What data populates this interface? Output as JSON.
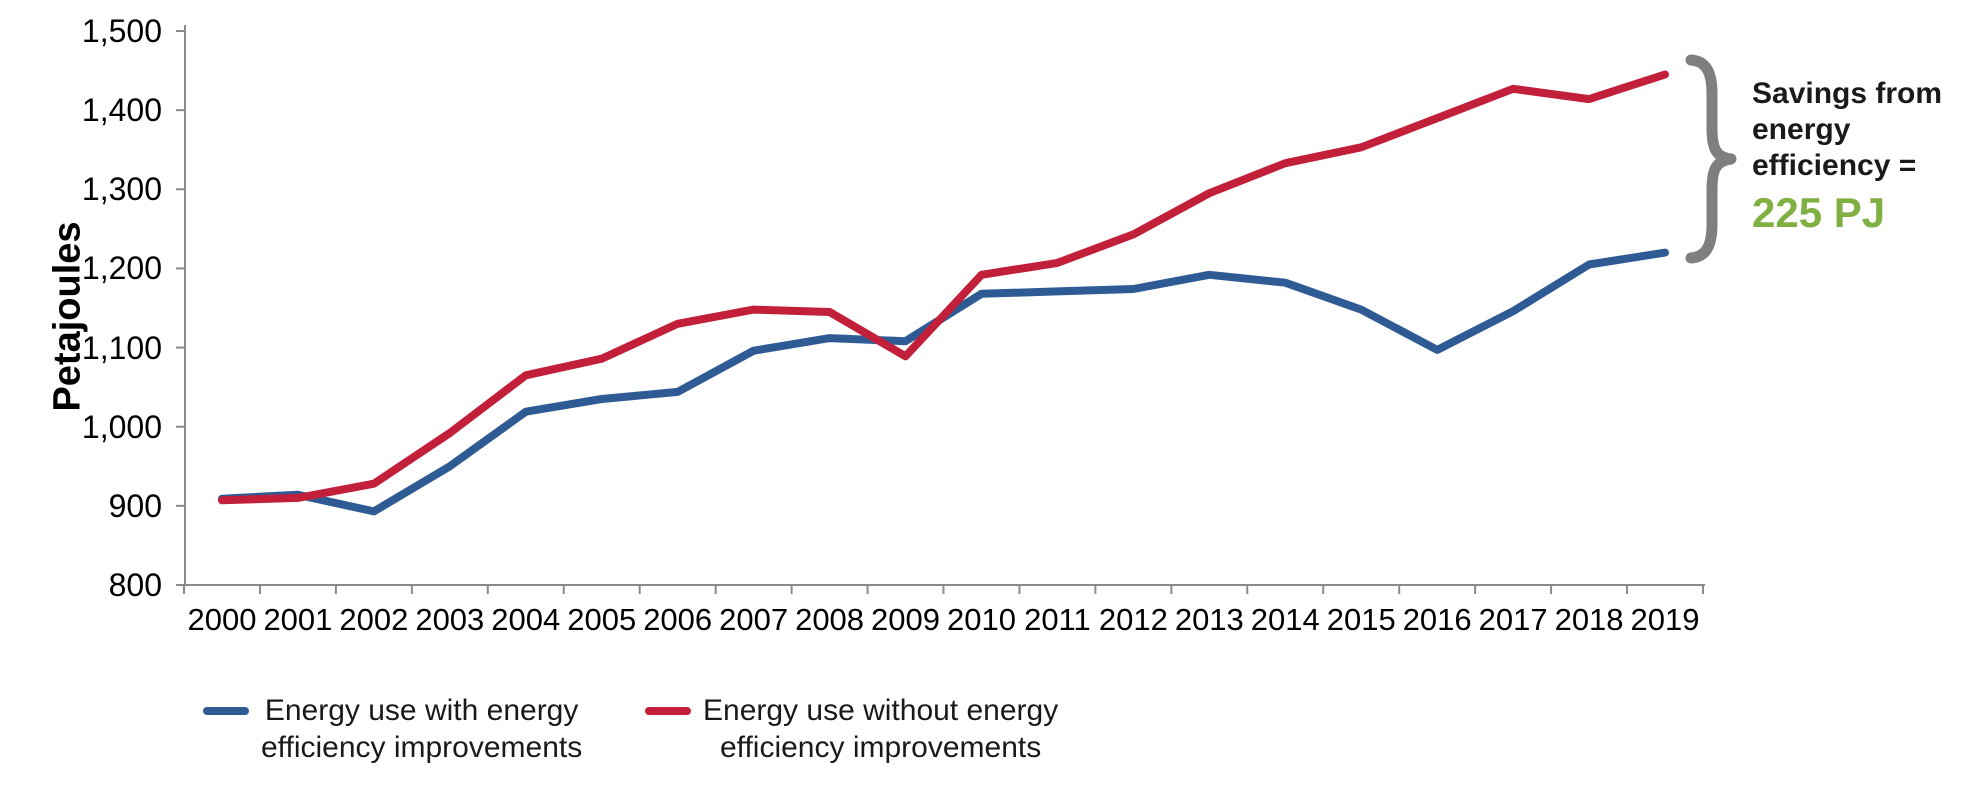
{
  "chart_data": {
    "type": "line",
    "title": "",
    "xlabel": "",
    "ylabel": "Petajoules",
    "ylim": [
      800,
      1500
    ],
    "grid": false,
    "legend_position": "bottom-left",
    "ytick_values": [
      800,
      900,
      1000,
      1100,
      1200,
      1300,
      1400,
      1500
    ],
    "ytick_labels": [
      "800",
      "900",
      "1,000",
      "1,100",
      "1,200",
      "1,300",
      "1,400",
      "1,500"
    ],
    "categories": [
      "2000",
      "2001",
      "2002",
      "2003",
      "2004",
      "2005",
      "2006",
      "2007",
      "2008",
      "2009",
      "2010",
      "2011",
      "2012",
      "2013",
      "2014",
      "2015",
      "2016",
      "2017",
      "2018",
      "2019"
    ],
    "series": [
      {
        "name": "Energy use with energy efficiency improvements",
        "color": "#2F5B94",
        "values": [
          909,
          914,
          893,
          950,
          1019,
          1035,
          1044,
          1096,
          1112,
          1108,
          1168,
          1171,
          1174,
          1192,
          1182,
          1148,
          1097,
          1146,
          1205,
          1220
        ]
      },
      {
        "name": "Energy use without energy efficiency improvements",
        "color": "#C2203A",
        "values": [
          907,
          910,
          928,
          992,
          1065,
          1086,
          1130,
          1148,
          1145,
          1089,
          1192,
          1207,
          1243,
          1295,
          1333,
          1353,
          1390,
          1427,
          1414,
          1445
        ]
      }
    ]
  },
  "axis": {
    "line_color": "#8A8A8A"
  },
  "legend": {
    "items": [
      {
        "line1": "Energy use with energy",
        "line2": "efficiency improvements"
      },
      {
        "line1": "Energy use without energy",
        "line2": "efficiency improvements"
      }
    ]
  },
  "annotation": {
    "line1": "Savings from",
    "line2": "energy",
    "line3": "efficiency =",
    "value": "225 PJ",
    "value_color": "#80B042",
    "brace_color": "#7F7F7F"
  }
}
